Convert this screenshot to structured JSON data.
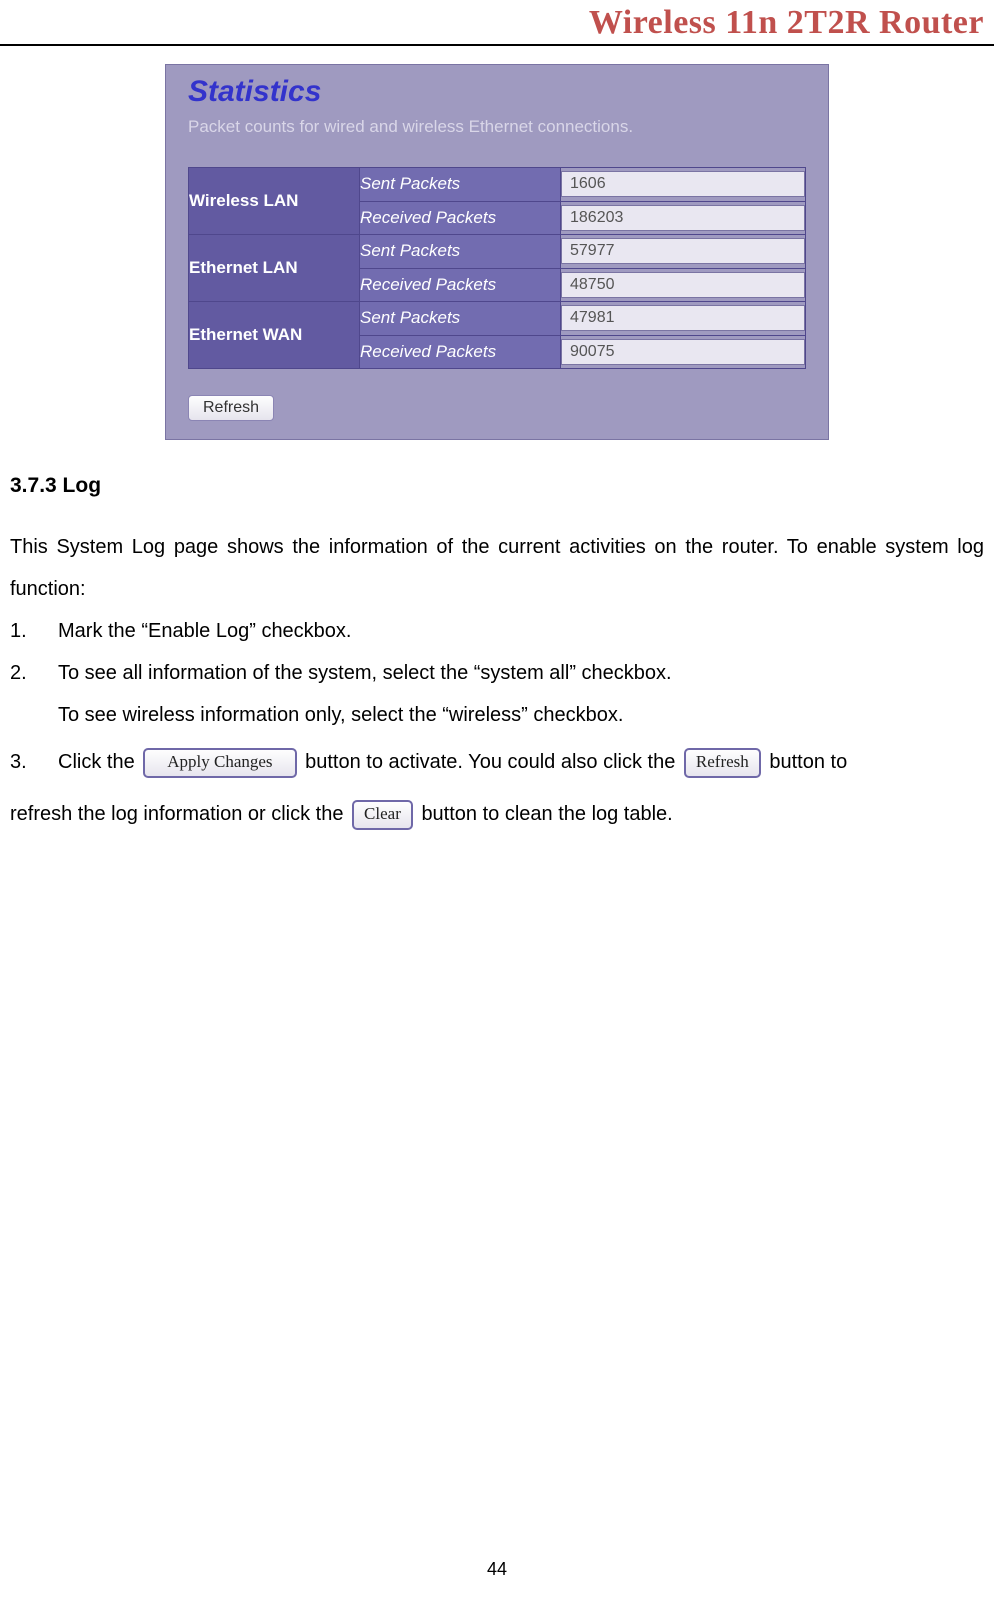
{
  "header": {
    "title": "Wireless 11n 2T2R Router",
    "title_color": "#c0504d",
    "underline_color": "#000000",
    "font_family": "Times New Roman"
  },
  "figure": {
    "panel": {
      "background_color": "#9f9ac0",
      "border_color": "#7a74a3",
      "title": "Statistics",
      "title_style": {
        "color": "#3333cc",
        "font_size_pt": 22,
        "font_weight": "bold",
        "font_style": "italic"
      },
      "description": "Packet counts for wired and wireless Ethernet connections.",
      "description_color": "#d9d6e8",
      "groups": [
        {
          "name": "Wireless LAN",
          "rows": [
            {
              "label": "Sent Packets",
              "value": "1606"
            },
            {
              "label": "Received Packets",
              "value": "186203"
            }
          ]
        },
        {
          "name": "Ethernet LAN",
          "rows": [
            {
              "label": "Sent Packets",
              "value": "57977"
            },
            {
              "label": "Received Packets",
              "value": "48750"
            }
          ]
        },
        {
          "name": "Ethernet WAN",
          "rows": [
            {
              "label": "Sent Packets",
              "value": "47981"
            },
            {
              "label": "Received Packets",
              "value": "90075"
            }
          ]
        }
      ],
      "cell_colors": {
        "group_bg": "#625aa1",
        "label_bg": "#726cb0",
        "value_bg": "#e9e7f1",
        "border": "#4f478c",
        "group_text": "#ffffff",
        "label_text": "#ffffff",
        "value_text": "#555555"
      },
      "refresh_button_label": "Refresh"
    }
  },
  "section": {
    "heading": "3.7.3 Log",
    "intro": "This System Log page shows the information of the current activities on the router. To enable system log function:",
    "steps": {
      "s1": "Mark the “Enable Log” checkbox.",
      "s2a": "To see all information of the system, select the “system all” checkbox.",
      "s2b": "To see wireless information only, select the “wireless” checkbox.",
      "s3_a": " Click the ",
      "s3_b": " button to activate. You could also click the ",
      "s3_c": " button to ",
      "s3_tail_a": "refresh the log information or click the ",
      "s3_tail_b": " button to clean the log table."
    },
    "inline_buttons": {
      "apply_changes": "Apply Changes",
      "refresh": "Refresh",
      "clear": "Clear"
    }
  },
  "page_number": "44"
}
